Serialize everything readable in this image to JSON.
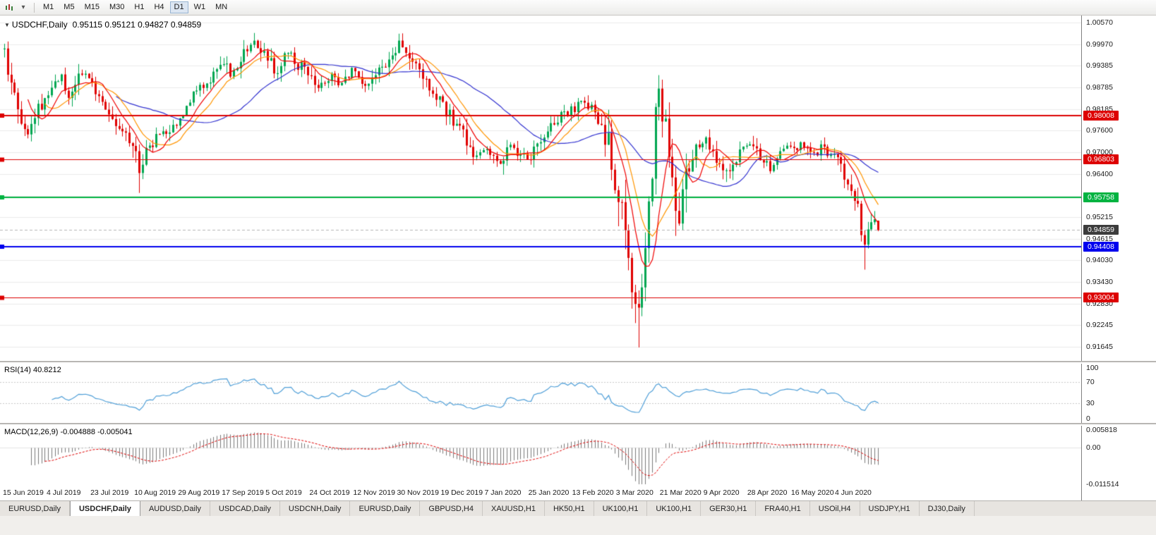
{
  "toolbar": {
    "timeframes": [
      "M1",
      "M5",
      "M15",
      "M30",
      "H1",
      "H4",
      "D1",
      "W1",
      "MN"
    ],
    "active_timeframe": "D1"
  },
  "chart": {
    "symbol": "USDCHF,Daily",
    "ohlc_text": "0.95115 0.95121 0.94827 0.94859",
    "bid_label": "0.94859",
    "axis_range": {
      "max": 1.0076,
      "min": 0.9126
    },
    "axis_ticks": [
      "1.00570",
      "0.99970",
      "0.99385",
      "0.98785",
      "0.98185",
      "0.97600",
      "0.97000",
      "0.96400",
      "0.95800",
      "0.95215",
      "0.94615",
      "0.94030",
      "0.93430",
      "0.92830",
      "0.92245",
      "0.91645"
    ],
    "hlines": [
      {
        "value": 0.98008,
        "label": "0.98008",
        "color": "#dd0000",
        "width": 2
      },
      {
        "value": 0.96803,
        "label": "0.96803",
        "color": "#dd0000",
        "width": 1
      },
      {
        "value": 0.95758,
        "label": "0.95758",
        "color": "#00b341",
        "width": 2
      },
      {
        "value": 0.94408,
        "label": "0.94408",
        "color": "#0000ee",
        "width": 2
      },
      {
        "value": 0.93004,
        "label": "0.93004",
        "color": "#dd0000",
        "width": 1
      }
    ],
    "colors": {
      "up": "#00a651",
      "down": "#e00000",
      "grid": "#ebebeb",
      "bid_badge": "#3c3c3c",
      "rsi": "#4f9fd8",
      "macd_hist": "#7a7a7a",
      "macd_signal": "#e00000"
    },
    "moving_averages": [
      {
        "name": "fast",
        "period": 8,
        "color": "#f00000"
      },
      {
        "name": "medium",
        "period": 13,
        "color": "#ff9500"
      },
      {
        "name": "slow",
        "period": 34,
        "color": "#3232d0"
      }
    ],
    "candles": {
      "count": 260,
      "anchors": [
        [
          0,
          0.9985
        ],
        [
          1,
          0.994
        ],
        [
          3,
          0.9855
        ],
        [
          5,
          0.978
        ],
        [
          7,
          0.9755
        ],
        [
          9,
          0.98
        ],
        [
          11,
          0.9832
        ],
        [
          13,
          0.9868
        ],
        [
          15,
          0.9892
        ],
        [
          17,
          0.9906
        ],
        [
          19,
          0.9862
        ],
        [
          21,
          0.9886
        ],
        [
          23,
          0.992
        ],
        [
          26,
          0.9882
        ],
        [
          29,
          0.9846
        ],
        [
          32,
          0.98
        ],
        [
          35,
          0.9756
        ],
        [
          38,
          0.972
        ],
        [
          40,
          0.9655
        ],
        [
          42,
          0.97
        ],
        [
          45,
          0.9736
        ],
        [
          48,
          0.9758
        ],
        [
          52,
          0.9792
        ],
        [
          55,
          0.9846
        ],
        [
          58,
          0.988
        ],
        [
          61,
          0.9902
        ],
        [
          63,
          0.9932
        ],
        [
          65,
          0.9952
        ],
        [
          67,
          0.992
        ],
        [
          69,
          0.9936
        ],
        [
          71,
          0.9968
        ],
        [
          74,
          1.0005
        ],
        [
          76,
          0.9978
        ],
        [
          78,
          0.996
        ],
        [
          80,
          0.9918
        ],
        [
          82,
          0.9938
        ],
        [
          84,
          0.9972
        ],
        [
          86,
          0.995
        ],
        [
          88,
          0.9932
        ],
        [
          91,
          0.9895
        ],
        [
          93,
          0.9868
        ],
        [
          95,
          0.989
        ],
        [
          97,
          0.9912
        ],
        [
          99,
          0.989
        ],
        [
          101,
          0.9906
        ],
        [
          104,
          0.9926
        ],
        [
          106,
          0.9896
        ],
        [
          108,
          0.988
        ],
        [
          110,
          0.9912
        ],
        [
          113,
          0.9948
        ],
        [
          115,
          0.9975
        ],
        [
          117,
          0.9998
        ],
        [
          119,
          0.9985
        ],
        [
          121,
          0.9942
        ],
        [
          123,
          0.9925
        ],
        [
          125,
          0.9886
        ],
        [
          127,
          0.9862
        ],
        [
          130,
          0.9828
        ],
        [
          132,
          0.98
        ],
        [
          134,
          0.9776
        ],
        [
          136,
          0.9745
        ],
        [
          138,
          0.9706
        ],
        [
          140,
          0.9686
        ],
        [
          143,
          0.9712
        ],
        [
          145,
          0.969
        ],
        [
          147,
          0.9668
        ],
        [
          149,
          0.9722
        ],
        [
          151,
          0.9706
        ],
        [
          153,
          0.9692
        ],
        [
          156,
          0.9688
        ],
        [
          158,
          0.9716
        ],
        [
          160,
          0.974
        ],
        [
          162,
          0.9768
        ],
        [
          164,
          0.9792
        ],
        [
          166,
          0.9806
        ],
        [
          169,
          0.9822
        ],
        [
          171,
          0.9846
        ],
        [
          173,
          0.9832
        ],
        [
          175,
          0.9815
        ],
        [
          177,
          0.9772
        ],
        [
          179,
          0.971
        ],
        [
          181,
          0.963
        ],
        [
          183,
          0.952
        ],
        [
          185,
          0.9395
        ],
        [
          187,
          0.93
        ],
        [
          188,
          0.9245
        ],
        [
          189,
          0.933
        ],
        [
          190,
          0.944
        ],
        [
          191,
          0.956
        ],
        [
          192,
          0.9665
        ],
        [
          193,
          0.978
        ],
        [
          194,
          0.986
        ],
        [
          195,
          0.982
        ],
        [
          196,
          0.975
        ],
        [
          197,
          0.966
        ],
        [
          198,
          0.959
        ],
        [
          199,
          0.9545
        ],
        [
          200,
          0.952
        ],
        [
          201,
          0.96
        ],
        [
          202,
          0.966
        ],
        [
          204,
          0.97
        ],
        [
          206,
          0.972
        ],
        [
          208,
          0.9738
        ],
        [
          210,
          0.9705
        ],
        [
          212,
          0.967
        ],
        [
          214,
          0.9645
        ],
        [
          216,
          0.9672
        ],
        [
          218,
          0.97
        ],
        [
          221,
          0.9728
        ],
        [
          223,
          0.97
        ],
        [
          225,
          0.9672
        ],
        [
          227,
          0.966
        ],
        [
          229,
          0.9698
        ],
        [
          231,
          0.9722
        ],
        [
          234,
          0.9712
        ],
        [
          236,
          0.9728
        ],
        [
          238,
          0.9705
        ],
        [
          240,
          0.9695
        ],
        [
          242,
          0.9712
        ],
        [
          244,
          0.97
        ],
        [
          247,
          0.968
        ],
        [
          249,
          0.9642
        ],
        [
          251,
          0.9605
        ],
        [
          253,
          0.956
        ],
        [
          254,
          0.949
        ],
        [
          255,
          0.944
        ],
        [
          256,
          0.948
        ],
        [
          257,
          0.9515
        ],
        [
          258,
          0.9512
        ],
        [
          259,
          0.94859
        ]
      ],
      "wicks": {
        "7": {
          "low": 0.9738
        },
        "40": {
          "low": 0.9588
        },
        "74": {
          "high": 1.0028
        },
        "117": {
          "high": 1.0026
        },
        "187": {
          "low": 0.923
        },
        "188": {
          "low": 0.9163
        },
        "194": {
          "high": 0.9912
        },
        "200": {
          "low": 0.9498
        },
        "214": {
          "low": 0.9618
        },
        "255": {
          "low": 0.9377
        }
      },
      "last": {
        "open": 0.95115,
        "high": 0.95121,
        "low": 0.94827,
        "close": 0.94859
      }
    }
  },
  "rsi": {
    "label": "RSI(14) 40.8212",
    "levels": [
      "100",
      "70",
      "30",
      "0"
    ],
    "upper_level": 70,
    "lower_level": 30
  },
  "macd": {
    "label": "MACD(12,26,9) -0.004888 -0.005041",
    "axis_labels": [
      "0.005818",
      "0.00",
      "-0.011514"
    ],
    "axis_max": 0.005818,
    "axis_min": -0.011514
  },
  "date_axis": {
    "labels": [
      "15 Jun 2019",
      "4 Jul 2019",
      "23 Jul 2019",
      "10 Aug 2019",
      "29 Aug 2019",
      "17 Sep 2019",
      "5 Oct 2019",
      "24 Oct 2019",
      "12 Nov 2019",
      "30 Nov 2019",
      "19 Dec 2019",
      "7 Jan 2020",
      "25 Jan 2020",
      "13 Feb 2020",
      "3 Mar 2020",
      "21 Mar 2020",
      "9 Apr 2020",
      "28 Apr 2020",
      "16 May 2020",
      "4 Jun 2020"
    ]
  },
  "tab_bar": {
    "tabs": [
      "EURUSD,Daily",
      "USDCHF,Daily",
      "AUDUSD,Daily",
      "USDCAD,Daily",
      "USDCNH,Daily",
      "EURUSD,Daily",
      "GBPUSD,H4",
      "XAUUSD,H1",
      "HK50,H1",
      "UK100,H1",
      "UK100,H1",
      "GER30,H1",
      "FRA40,H1",
      "USOil,H4",
      "USDJPY,H1",
      "DJ30,Daily"
    ],
    "active_index": 1
  }
}
